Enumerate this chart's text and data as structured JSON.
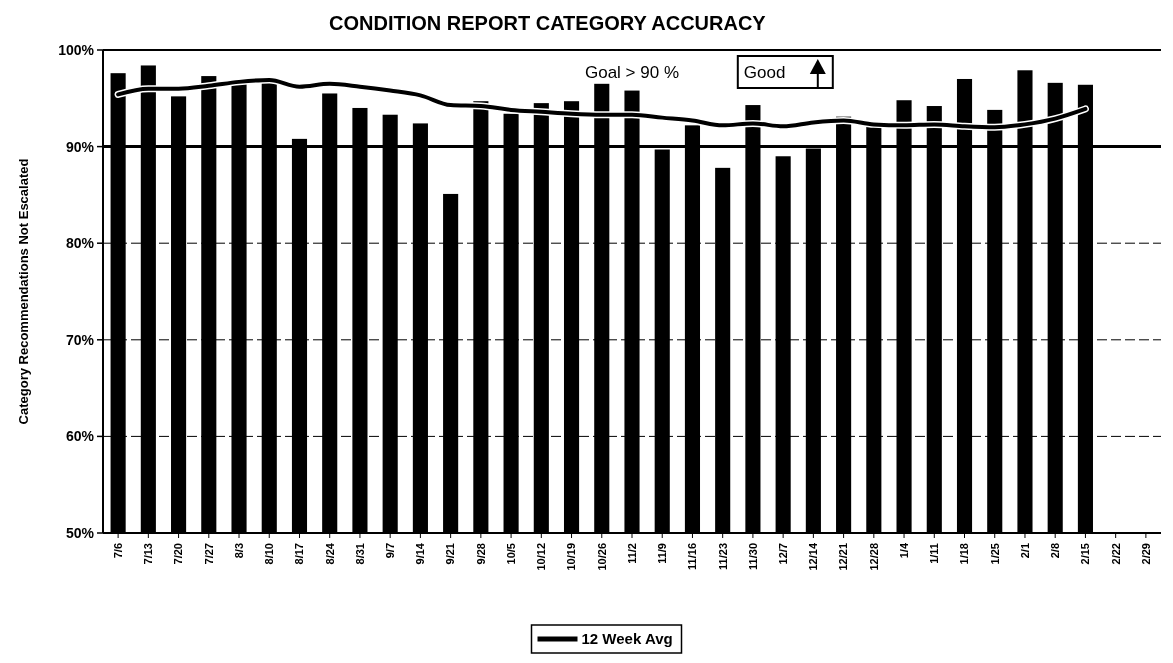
{
  "chart_data": {
    "type": "bar",
    "title": "CONDITION REPORT CATEGORY ACCURACY",
    "ylabel": "Category Recommendations Not Escalated",
    "categories": [
      "7/6",
      "7/13",
      "7/20",
      "7/27",
      "8/3",
      "8/10",
      "8/17",
      "8/24",
      "8/31",
      "9/7",
      "9/14",
      "9/21",
      "9/28",
      "10/5",
      "10/12",
      "10/19",
      "10/26",
      "11/2",
      "11/9",
      "11/16",
      "11/23",
      "11/30",
      "12/7",
      "12/14",
      "12/21",
      "12/28",
      "1/4",
      "1/11",
      "1/18",
      "1/25",
      "2/1",
      "2/8",
      "2/15",
      "2/22",
      "2/29"
    ],
    "series": [
      {
        "color": "#000000",
        "values": [
          97.6,
          98.4,
          95.2,
          97.3,
          96.8,
          96.9,
          90.8,
          95.5,
          94.0,
          93.3,
          92.4,
          85.1,
          94.7,
          93.4,
          94.5,
          94.7,
          96.5,
          95.8,
          89.7,
          92.2,
          87.8,
          94.3,
          89.0,
          89.8,
          93.1,
          92.1,
          94.8,
          94.2,
          97.0,
          93.8,
          97.9,
          96.6,
          96.4,
          null,
          null
        ]
      },
      {
        "type": "line",
        "name": "12 Week Avg",
        "color": "#000000",
        "values": [
          95.4,
          96.0,
          96.0,
          96.3,
          96.7,
          96.9,
          96.2,
          96.5,
          96.2,
          95.8,
          95.3,
          94.3,
          94.2,
          93.8,
          93.6,
          93.4,
          93.3,
          93.3,
          93.0,
          92.7,
          92.2,
          92.4,
          92.1,
          92.5,
          92.7,
          92.3,
          92.2,
          92.3,
          92.1,
          92.0,
          92.3,
          92.9,
          93.9,
          null,
          null
        ]
      }
    ],
    "ylim": [
      50,
      100
    ],
    "yticks": [
      {
        "value": 50,
        "label": "50%"
      },
      {
        "value": 60,
        "label": "60%"
      },
      {
        "value": 70,
        "label": "70%"
      },
      {
        "value": 80,
        "label": "80%"
      },
      {
        "value": 90,
        "label": "90%"
      },
      {
        "value": 100,
        "label": "100%"
      }
    ],
    "grid": "y",
    "line_style": "solid",
    "marker": "none",
    "legend": "bottom",
    "ref_lines": [
      {
        "axis": "y",
        "value": 90,
        "color": "#000000",
        "line_style": "solid"
      }
    ],
    "annotations": [
      "Goal > 90 %",
      "Good"
    ]
  }
}
